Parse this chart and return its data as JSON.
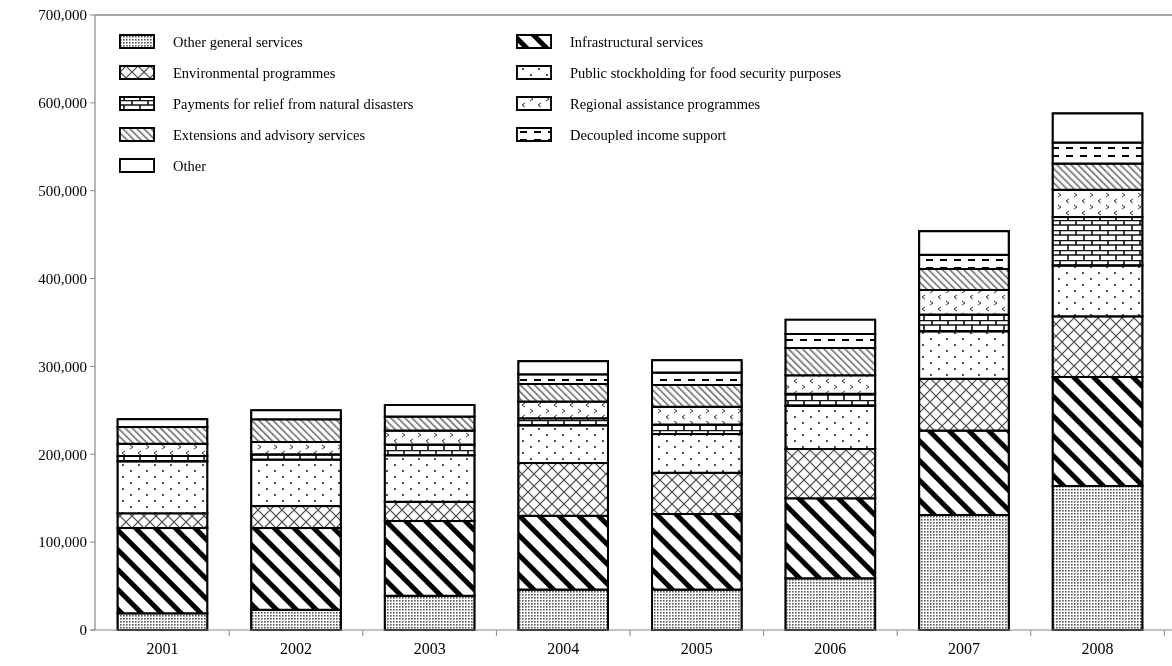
{
  "chart_data": {
    "type": "bar",
    "stacked": true,
    "categories": [
      "2001",
      "2002",
      "2003",
      "2004",
      "2005",
      "2006",
      "2007",
      "2008"
    ],
    "series": [
      {
        "name": "Other general services",
        "color": "#555555",
        "values": [
          19000,
          23000,
          39000,
          46000,
          46000,
          59000,
          131000,
          164000
        ]
      },
      {
        "name": "Infrastructural services",
        "color": "#000000",
        "values": [
          97000,
          93000,
          85000,
          84000,
          86000,
          91000,
          96000,
          124000
        ]
      },
      {
        "name": "Environmental programmes",
        "color": "#444444",
        "values": [
          17000,
          25000,
          22000,
          60000,
          47000,
          56000,
          59000,
          69000
        ]
      },
      {
        "name": "Public stockholding for food security purposes",
        "color": "#222222",
        "values": [
          59000,
          53000,
          53000,
          43000,
          44000,
          49000,
          54000,
          58000
        ]
      },
      {
        "name": "Payments for relief from natural disasters",
        "color": "#111111",
        "values": [
          6000,
          6000,
          12000,
          8000,
          11000,
          14000,
          19000,
          55000
        ]
      },
      {
        "name": "Regional assistance programmes",
        "color": "#333333",
        "values": [
          14000,
          14000,
          16000,
          19000,
          20000,
          21000,
          28000,
          31000
        ]
      },
      {
        "name": "Extensions and advisory services",
        "color": "#666666",
        "values": [
          19000,
          26000,
          16000,
          20000,
          25000,
          31000,
          24000,
          30000
        ]
      },
      {
        "name": "Decoupled income support",
        "color": "#010101",
        "values": [
          0,
          0,
          0,
          11000,
          14000,
          16000,
          16000,
          24000
        ]
      },
      {
        "name": "Other",
        "color": "#ffffff",
        "values": [
          9000,
          10000,
          13000,
          15000,
          14000,
          16000,
          27000,
          33000
        ]
      }
    ],
    "ylim": [
      0,
      700000
    ],
    "yticks": [
      {
        "value": 0,
        "label": "0"
      },
      {
        "value": 100000,
        "label": "100,000"
      },
      {
        "value": 200000,
        "label": "200,000"
      },
      {
        "value": 300000,
        "label": "300,000"
      },
      {
        "value": 400000,
        "label": "400,000"
      },
      {
        "value": 500000,
        "label": "500,000"
      },
      {
        "value": 600000,
        "label": "600,000"
      },
      {
        "value": 700000,
        "label": "700,000"
      }
    ],
    "legend": "top left",
    "grid": false
  }
}
